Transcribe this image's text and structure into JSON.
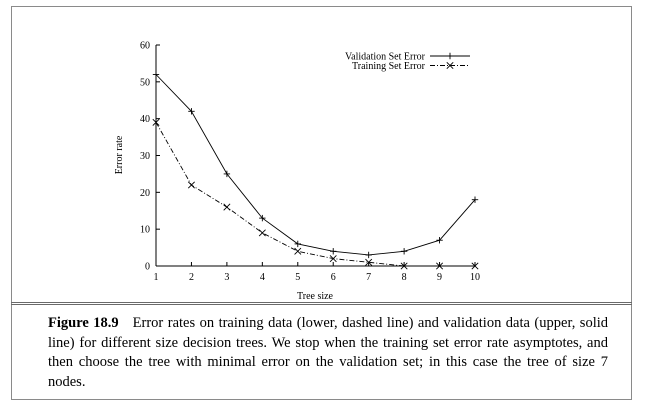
{
  "chart_data": {
    "type": "line",
    "xlabel": "Tree size",
    "ylabel": "Error rate",
    "x": [
      1,
      2,
      3,
      4,
      5,
      6,
      7,
      8,
      9,
      10
    ],
    "xlim": [
      1,
      10
    ],
    "ylim": [
      0,
      60
    ],
    "xticks": [
      "1",
      "2",
      "3",
      "4",
      "5",
      "6",
      "7",
      "8",
      "9",
      "10"
    ],
    "yticks": [
      "0",
      "10",
      "20",
      "30",
      "40",
      "50",
      "60"
    ],
    "grid": false,
    "legend_position": "top-right",
    "series": [
      {
        "name": "Validation Set Error",
        "line_style": "solid",
        "marker": "plus",
        "values": [
          52,
          42,
          25,
          13,
          6,
          4,
          3,
          4,
          7,
          18
        ]
      },
      {
        "name": "Training Set Error",
        "line_style": "dash-dot",
        "marker": "cross",
        "values": [
          39,
          22,
          16,
          9,
          4,
          2,
          1,
          0,
          0,
          0
        ]
      }
    ]
  },
  "caption": {
    "label": "Figure 18.9",
    "text": "Error rates on training data (lower, dashed line) and validation data (upper, solid line) for different size decision trees. We stop when the training set error rate asymptotes, and then choose the tree with minimal error on the validation set; in this case the tree of size 7 nodes."
  }
}
